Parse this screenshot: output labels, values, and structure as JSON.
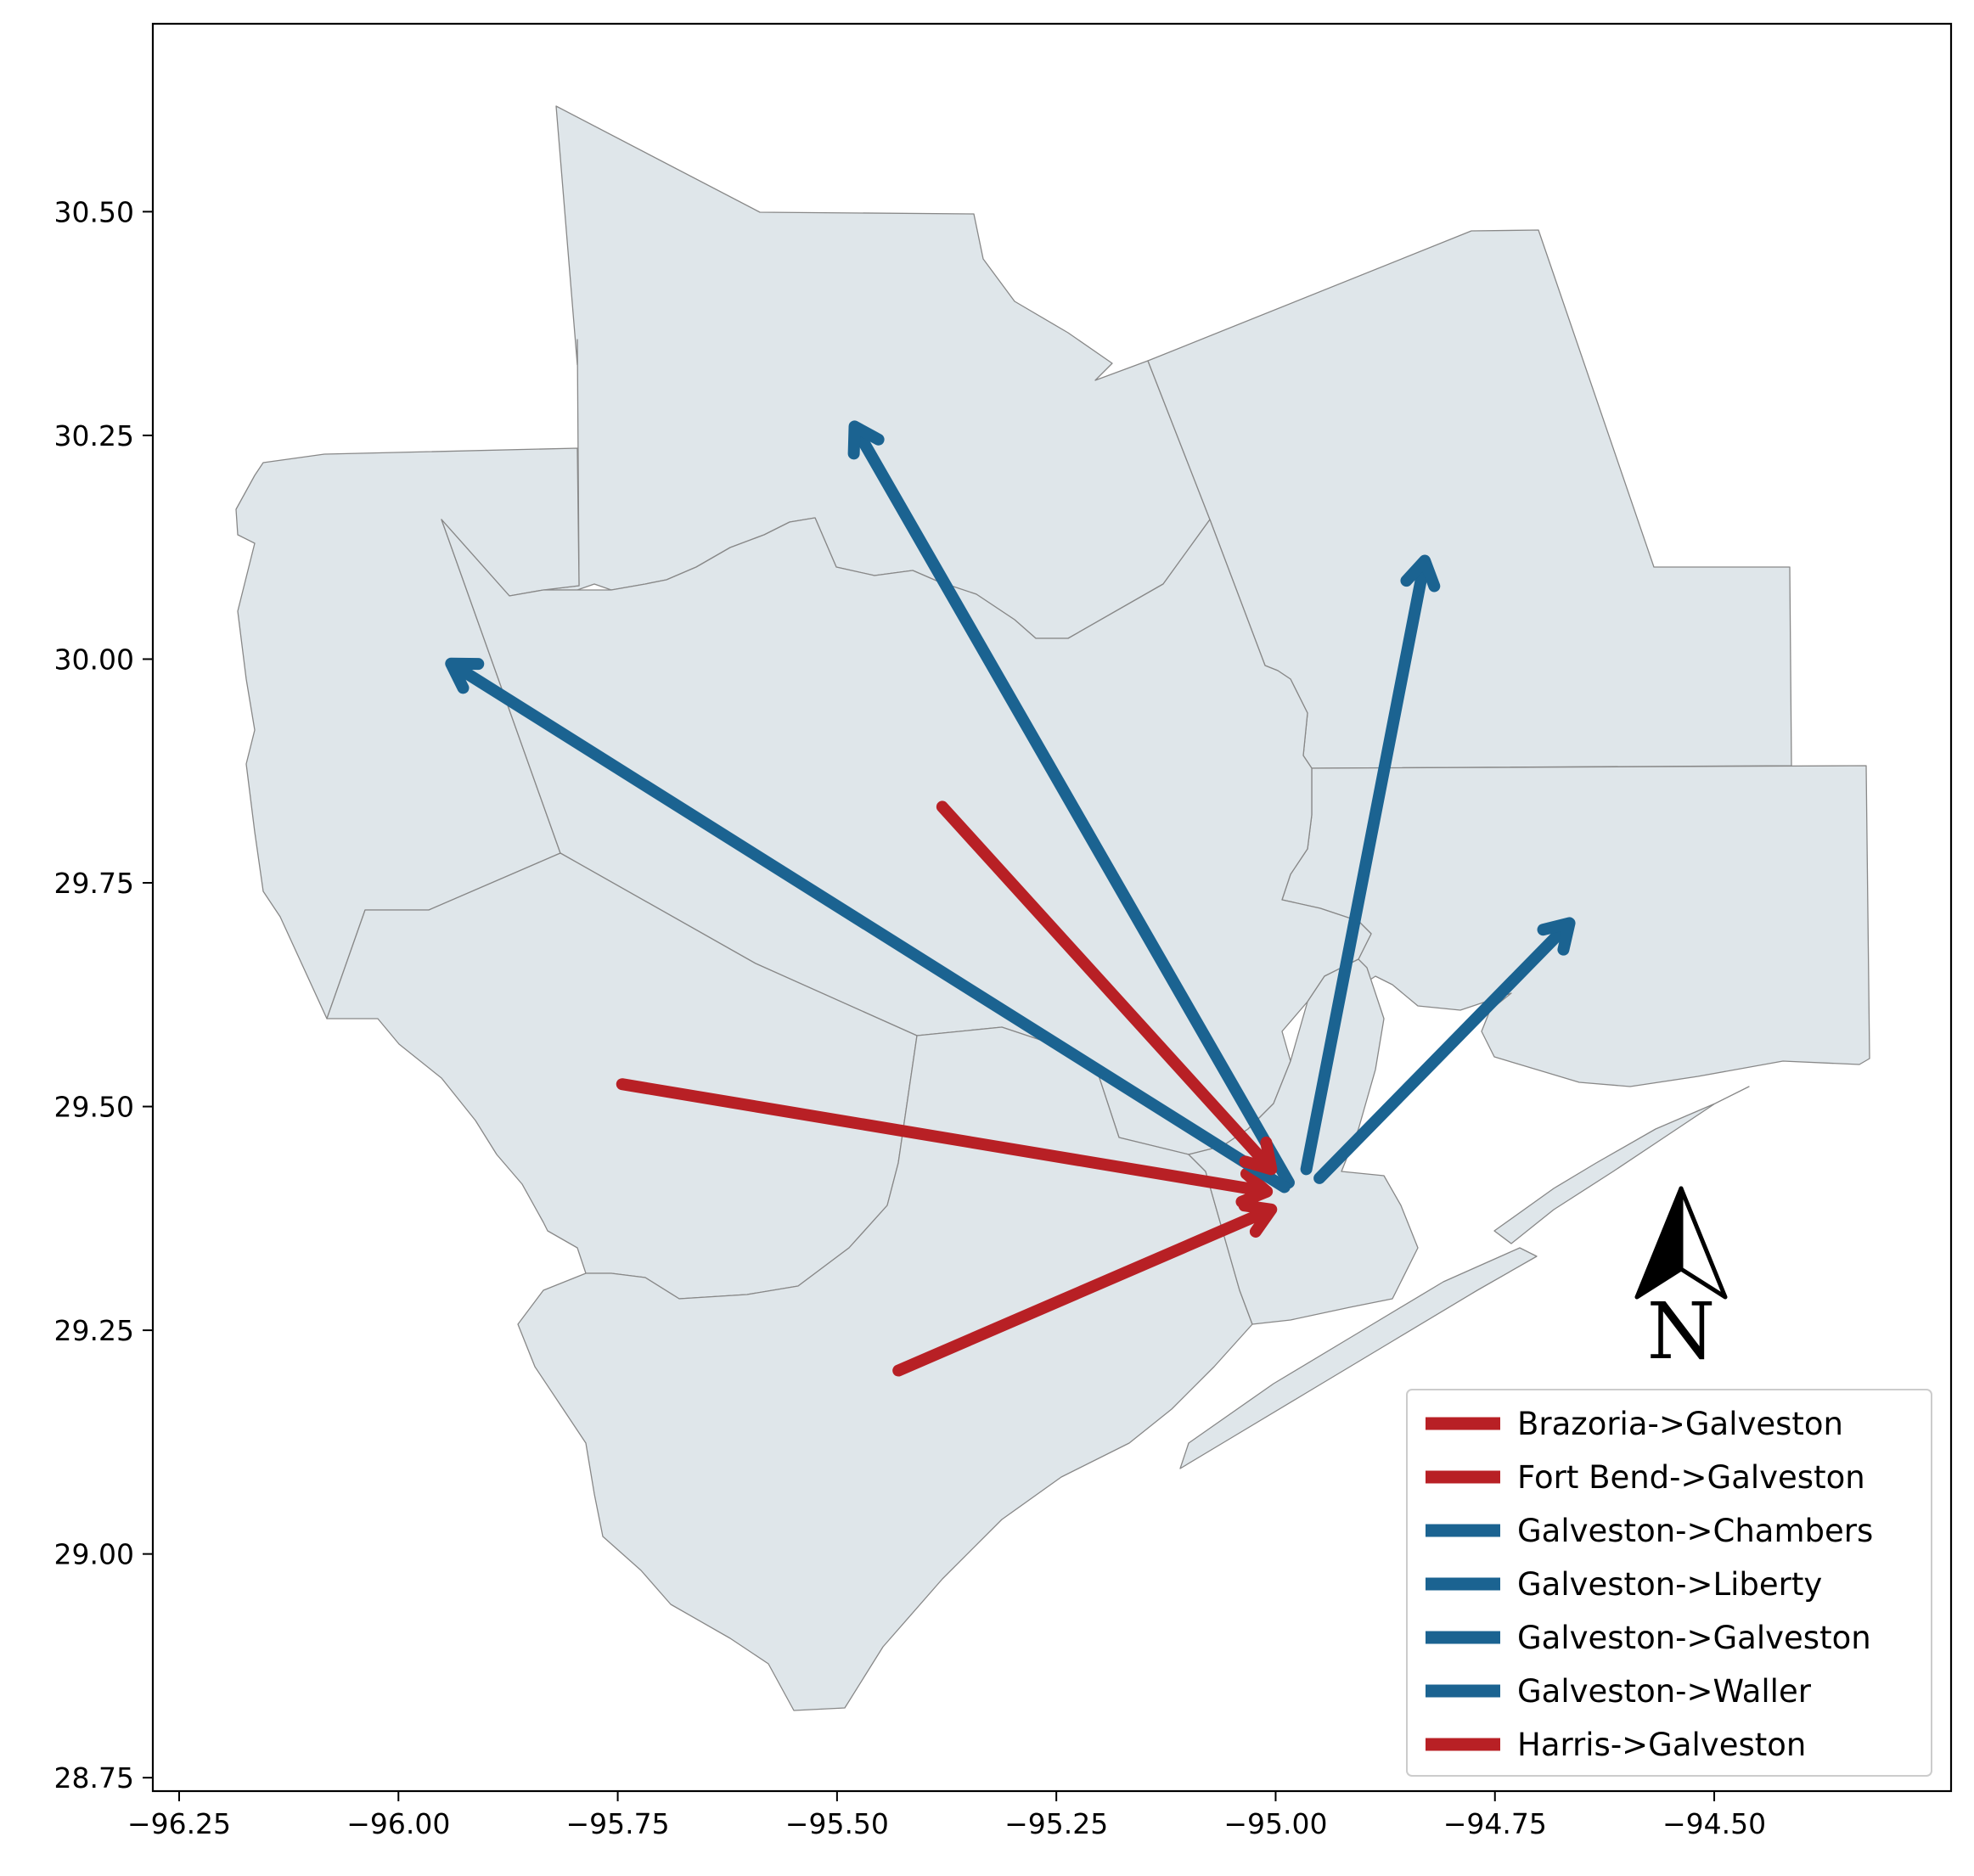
{
  "chart_data": {
    "type": "map",
    "xlim": [
      -96.28,
      -94.23
    ],
    "ylim": [
      28.735,
      30.71
    ],
    "x_ticks": [
      {
        "value": -96.25,
        "label": "−96.25"
      },
      {
        "value": -96.0,
        "label": "−96.00"
      },
      {
        "value": -95.75,
        "label": "−95.75"
      },
      {
        "value": -95.5,
        "label": "−95.50"
      },
      {
        "value": -95.25,
        "label": "−95.25"
      },
      {
        "value": -95.0,
        "label": "−95.00"
      },
      {
        "value": -94.75,
        "label": "−94.75"
      },
      {
        "value": -94.5,
        "label": "−94.50"
      }
    ],
    "y_ticks": [
      {
        "value": 28.75,
        "label": "28.75"
      },
      {
        "value": 29.0,
        "label": "29.00"
      },
      {
        "value": 29.25,
        "label": "29.25"
      },
      {
        "value": 29.5,
        "label": "29.50"
      },
      {
        "value": 29.75,
        "label": "29.75"
      },
      {
        "value": 30.0,
        "label": "30.00"
      },
      {
        "value": 30.25,
        "label": "30.25"
      },
      {
        "value": 30.5,
        "label": "30.50"
      }
    ],
    "flows": [
      {
        "label": "Brazoria->Galveston",
        "from": [
          -95.43,
          29.205
        ],
        "to": [
          -95.005,
          29.385
        ],
        "color": "#b82025"
      },
      {
        "label": "Fort Bend->Galveston",
        "from": [
          -95.745,
          29.525
        ],
        "to": [
          -95.01,
          29.405
        ],
        "color": "#b82025"
      },
      {
        "label": "Galveston->Chambers",
        "from": [
          -94.95,
          29.42
        ],
        "to": [
          -94.665,
          29.705
        ],
        "color": "#1b6391"
      },
      {
        "label": "Galveston->Liberty",
        "from": [
          -94.965,
          29.43
        ],
        "to": [
          -94.83,
          30.11
        ],
        "color": "#1b6391"
      },
      {
        "label": "Galveston->Galveston",
        "from": [
          -94.985,
          29.415
        ],
        "to": [
          -95.48,
          30.26
        ],
        "color": "#1b6391"
      },
      {
        "label": "Galveston->Waller",
        "from": [
          -94.99,
          29.41
        ],
        "to": [
          -95.94,
          29.995
        ],
        "color": "#1b6391"
      },
      {
        "label": "Harris->Galveston",
        "from": [
          -95.38,
          29.835
        ],
        "to": [
          -95.005,
          29.43
        ],
        "color": "#b82025"
      }
    ],
    "legend": {
      "position": "lower right",
      "entries": [
        {
          "label": "Brazoria->Galveston",
          "color": "#b82025"
        },
        {
          "label": "Fort Bend->Galveston",
          "color": "#b82025"
        },
        {
          "label": "Galveston->Chambers",
          "color": "#1b6391"
        },
        {
          "label": "Galveston->Liberty",
          "color": "#1b6391"
        },
        {
          "label": "Galveston->Galveston",
          "color": "#1b6391"
        },
        {
          "label": "Galveston->Waller",
          "color": "#1b6391"
        },
        {
          "label": "Harris->Galveston",
          "color": "#b82025"
        }
      ]
    },
    "north_arrow": {
      "letter": "N"
    },
    "grid": false
  },
  "colors": {
    "land": "#dfe6ea",
    "boundary": "#888888",
    "inbound": "#b82025",
    "outbound": "#1b6391"
  }
}
